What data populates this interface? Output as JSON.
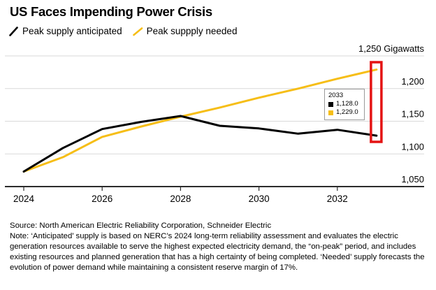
{
  "header": {
    "title": "US Faces Impending Power Crisis"
  },
  "chart_data": {
    "type": "line",
    "title": "US Faces Impending Power Crisis",
    "xlabel": "",
    "ylabel": "Gigawatts",
    "unit": "Gigawatts",
    "grid": true,
    "legend_position": "top",
    "x": [
      2024,
      2025,
      2026,
      2027,
      2028,
      2029,
      2030,
      2031,
      2032,
      2033
    ],
    "series": [
      {
        "name": "Peak supply anticipated",
        "color": "#000000",
        "values": [
          1073,
          1109,
          1138,
          1149,
          1158,
          1143,
          1139,
          1131,
          1137,
          1128
        ]
      },
      {
        "name": "Peak suppply needed",
        "color": "#f6be17",
        "values": [
          1073,
          1095,
          1126,
          1142,
          1157,
          1171,
          1186,
          1200,
          1215,
          1229
        ]
      }
    ],
    "ylim": [
      1050,
      1250
    ],
    "yticks": [
      {
        "value": 1250,
        "label": "1,250 Gigawatts"
      },
      {
        "value": 1200,
        "label": "1,200"
      },
      {
        "value": 1150,
        "label": "1,150"
      },
      {
        "value": 1100,
        "label": "1,100"
      },
      {
        "value": 1050,
        "label": "1,050"
      }
    ],
    "xticks": [
      {
        "value": 2024,
        "label": "2024"
      },
      {
        "value": 2026,
        "label": "2026"
      },
      {
        "value": 2028,
        "label": "2028"
      },
      {
        "value": 2030,
        "label": "2030"
      },
      {
        "value": 2032,
        "label": "2032"
      }
    ],
    "tooltip": {
      "year": "2033",
      "rows": [
        {
          "color": "#000000",
          "value": "1,128.0"
        },
        {
          "color": "#f6be17",
          "value": "1,229.0"
        }
      ]
    },
    "highlight": {
      "year": 2033,
      "color": "#e41313"
    },
    "colors": {
      "gridline": "#d9d9d9",
      "axis": "#2b2b2b",
      "text": "#000000"
    }
  },
  "footer": {
    "source": "Source: North American Electric Reliability Corporation, Schneider Electric",
    "note": "Note: ‘Anticipated’ supply is based on NERC’s 2024 long-term reliability assessment and evaluates the electric generation resources available to serve the highest expected electricity demand, the “on-peak” period, and includes existing resources and planned generation that has a high certainty of being completed. ‘Needed’ supply forecasts the evolution of power demand while maintaining a consistent reserve margin of 17%."
  }
}
